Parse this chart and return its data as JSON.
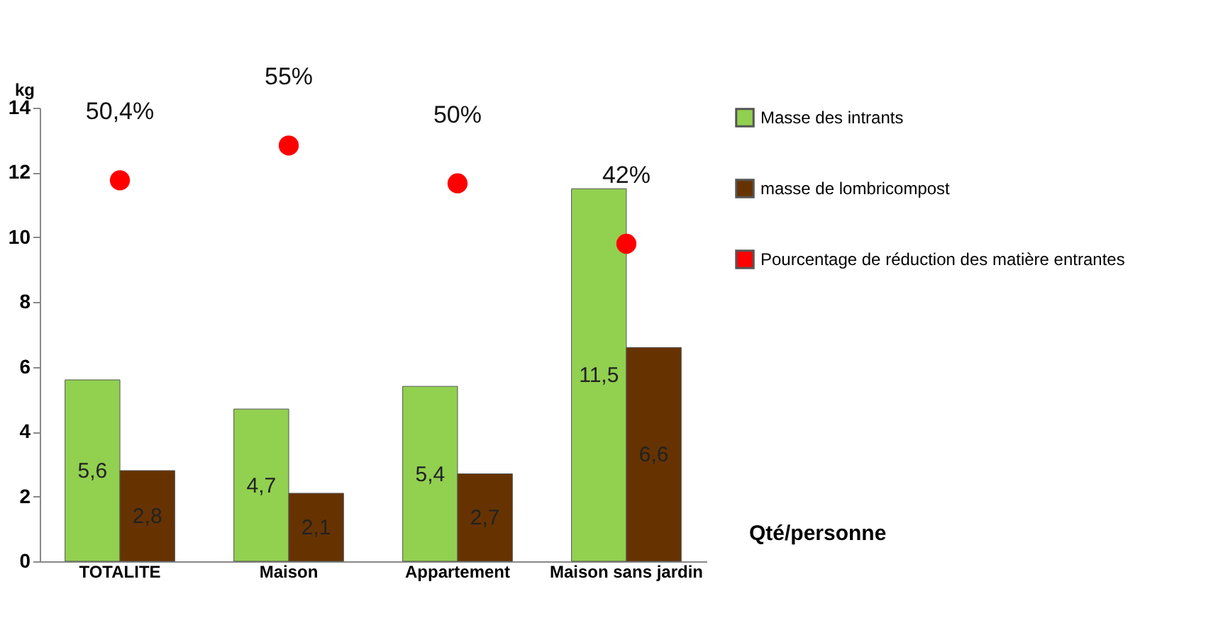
{
  "chart_data": {
    "type": "bar",
    "ylabel": "kg",
    "categories": [
      "TOTALITE",
      "Maison",
      "Appartement",
      "Maison sans jardin"
    ],
    "series": [
      {
        "name": "Masse des intrants",
        "color": "#92d050",
        "values": [
          5.6,
          4.7,
          5.4,
          11.5
        ],
        "value_labels": [
          "5,6",
          "4,7",
          "5,4",
          "11,5"
        ]
      },
      {
        "name": "masse de lombricompost",
        "color": "#663300",
        "values": [
          2.8,
          2.1,
          2.7,
          6.6
        ],
        "value_labels": [
          "2,8",
          "2,1",
          "2,7",
          "6,6"
        ]
      },
      {
        "name": "Pourcentage de réduction des matière entrantes",
        "color": "#ff0000",
        "type": "scatter",
        "axis": "y2",
        "marker": "circle",
        "values": [
          50.4,
          55,
          50,
          42
        ],
        "value_labels": [
          "50,4%",
          "55%",
          "50%",
          "42%"
        ]
      }
    ],
    "ylim": [
      0,
      14
    ],
    "yticks": [
      0,
      2,
      4,
      6,
      8,
      10,
      12,
      14
    ],
    "y2lim": [
      0,
      60
    ],
    "grid": false,
    "legend": "right",
    "tick_labels": [
      "x",
      "y"
    ],
    "annotations": [
      "Qté/personne"
    ]
  }
}
